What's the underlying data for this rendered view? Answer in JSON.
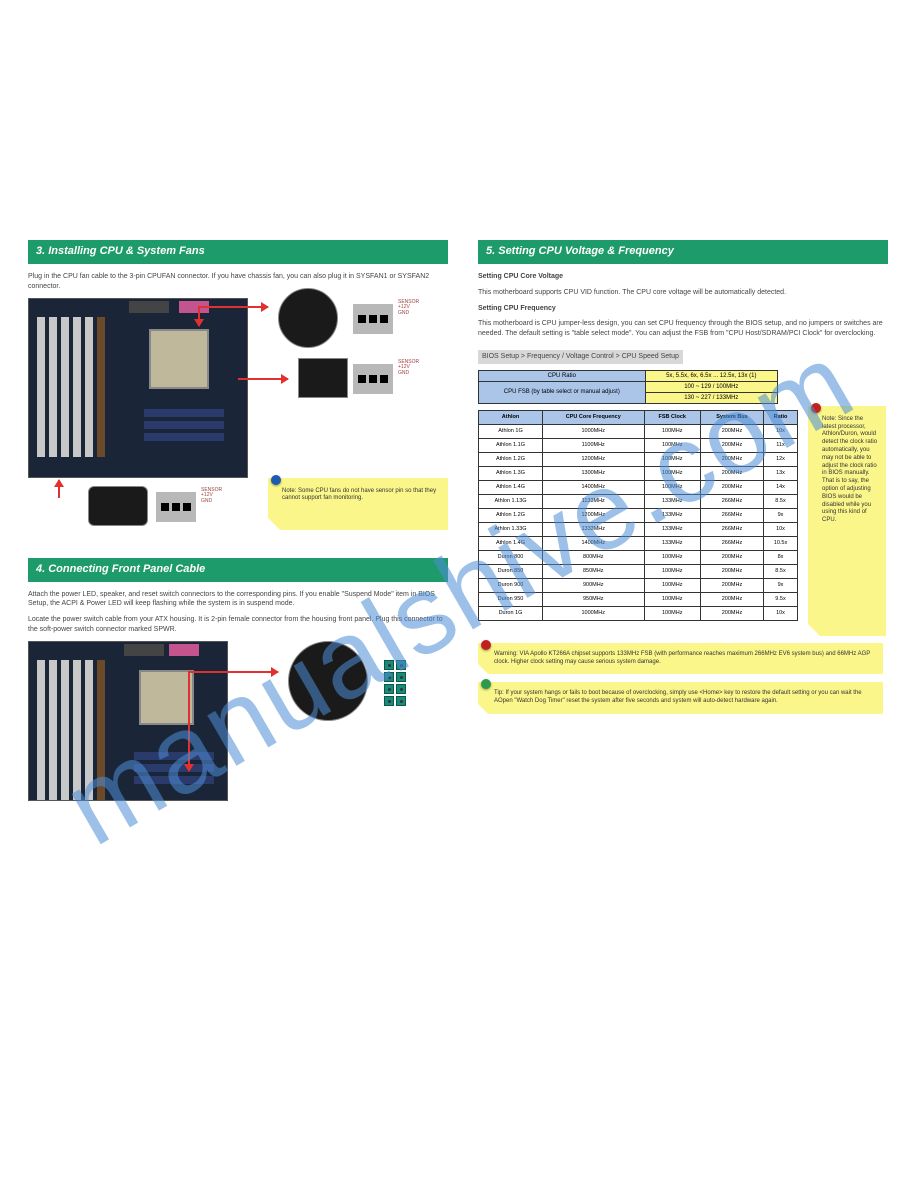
{
  "watermark": "manualshive.com",
  "left": {
    "bar1": "3. Installing CPU & System Fans",
    "intro1": "Plug in the CPU fan cable to the 3-pin CPUFAN connector. If you have chassis fan, you can also plug it in SYSFAN1 or SYSFAN2 connector.",
    "fan": {
      "pin1": "GND",
      "pin2": "+12V",
      "pin3": "SENSOR"
    },
    "note1": "Note: Some CPU fans do not have sensor pin so that they cannot support fan monitoring.",
    "bar2": "4. Connecting Front Panel Cable",
    "intro2": "Attach the power LED, speaker, and reset switch connectors to the corresponding pins. If you enable \"Suspend Mode\" item in BIOS Setup, the ACPI & Power LED will keep flashing while the system is in suspend mode.",
    "intro3": "Locate the power switch cable from your ATX housing. It is 2-pin female connector from the housing front panel. Plug this connector to the soft-power switch connector marked SPWR."
  },
  "right": {
    "bar": "5. Setting CPU Voltage & Frequency",
    "sub1": "Setting CPU Core Voltage",
    "p1": "This motherboard supports CPU VID function. The CPU core voltage will be automatically detected.",
    "sub2": "Setting CPU Frequency",
    "p2": "This motherboard is CPU jumper-less design, you can set CPU frequency through the BIOS setup, and no jumpers or switches are needed. The default setting is \"table select mode\". You can adjust the FSB from \"CPU Host/SDRAM/PCI Clock\" for overclocking.",
    "path": "BIOS Setup > Frequency / Voltage Control > CPU Speed Setup",
    "t1": {
      "h1": "CPU Ratio",
      "h2": "CPU FSB (by table select or manual adjust)",
      "r1": "5x, 5.5x, 6x, 6.5x ... 12.5x, 13x (1)",
      "r2a": "100 ~ 129",
      "r2b": "100MHz",
      "r3a": "130 ~ 227",
      "r3b": "133MHz"
    },
    "t2": {
      "c1": "Athlon",
      "c2": "CPU Core Frequency",
      "c3": "FSB Clock",
      "c4": "System Bus",
      "c5": "Ratio",
      "rows": [
        [
          "Athlon 1G",
          "1000MHz",
          "100MHz",
          "200MHz",
          "10x"
        ],
        [
          "Athlon 1.1G",
          "1100MHz",
          "100MHz",
          "200MHz",
          "11x"
        ],
        [
          "Athlon 1.2G",
          "1200MHz",
          "100MHz",
          "200MHz",
          "12x"
        ],
        [
          "Athlon 1.3G",
          "1300MHz",
          "100MHz",
          "200MHz",
          "13x"
        ],
        [
          "Athlon 1.4G",
          "1400MHz",
          "100MHz",
          "200MHz",
          "14x"
        ],
        [
          "Athlon 1.13G",
          "1133MHz",
          "133MHz",
          "266MHz",
          "8.5x"
        ],
        [
          "Athlon 1.2G",
          "1200MHz",
          "133MHz",
          "266MHz",
          "9x"
        ],
        [
          "Athlon 1.33G",
          "1333MHz",
          "133MHz",
          "266MHz",
          "10x"
        ],
        [
          "Athlon 1.4G",
          "1400MHz",
          "133MHz",
          "266MHz",
          "10.5x"
        ],
        [
          "Duron 800",
          "800MHz",
          "100MHz",
          "200MHz",
          "8x"
        ],
        [
          "Duron 850",
          "850MHz",
          "100MHz",
          "200MHz",
          "8.5x"
        ],
        [
          "Duron 900",
          "900MHz",
          "100MHz",
          "200MHz",
          "9x"
        ],
        [
          "Duron 950",
          "950MHz",
          "100MHz",
          "200MHz",
          "9.5x"
        ],
        [
          "Duron 1G",
          "1000MHz",
          "100MHz",
          "200MHz",
          "10x"
        ]
      ]
    },
    "tip": "Tip: If your system hangs or fails to boot because of overclocking, simply use <Home> key to restore the default setting or you can wait the AOpen \"Watch Dog Timer\" reset the system after five seconds and system will auto-detect hardware again.",
    "warn": "Warning: VIA Apollo KT266A chipset supports 133MHz FSB (with performance reaches maximum 266MHz EV6 system bus) and 66MHz AGP clock. Higher clock setting may cause serious system damage.",
    "side": "Note: Since the latest processor, Athlon/Duron, would detect the clock ratio automatically, you may not be able to adjust the clock ratio in BIOS manually. That is to say, the option of adjusting BIOS would be disabled while you using this kind of CPU."
  }
}
